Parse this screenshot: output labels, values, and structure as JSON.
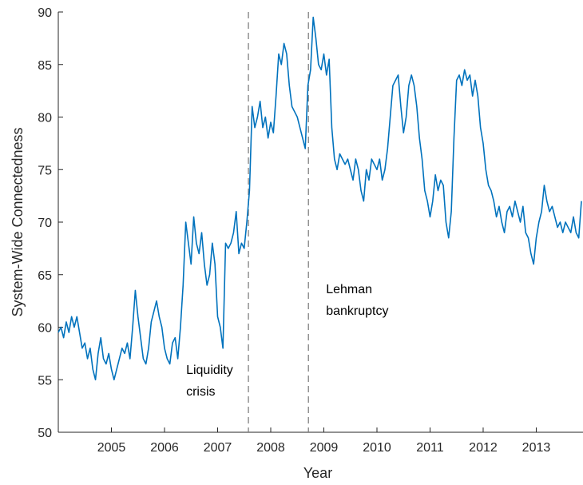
{
  "chart_data": {
    "type": "line",
    "x_label": "Year",
    "y_label": "System-Wide Connectedness",
    "x": [
      2004,
      2004.05,
      2004.1,
      2004.15,
      2004.2,
      2004.25,
      2004.3,
      2004.35,
      2004.4,
      2004.45,
      2004.5,
      2004.55,
      2004.6,
      2004.65,
      2004.7,
      2004.75,
      2004.8,
      2004.85,
      2004.9,
      2004.95,
      2005,
      2005.05,
      2005.1,
      2005.15,
      2005.2,
      2005.25,
      2005.3,
      2005.35,
      2005.4,
      2005.45,
      2005.5,
      2005.55,
      2005.6,
      2005.65,
      2005.7,
      2005.75,
      2005.8,
      2005.85,
      2005.9,
      2005.95,
      2006,
      2006.05,
      2006.1,
      2006.15,
      2006.2,
      2006.25,
      2006.3,
      2006.35,
      2006.4,
      2006.45,
      2006.5,
      2006.55,
      2006.6,
      2006.65,
      2006.7,
      2006.75,
      2006.8,
      2006.85,
      2006.9,
      2006.95,
      2007,
      2007.05,
      2007.1,
      2007.15,
      2007.2,
      2007.25,
      2007.3,
      2007.35,
      2007.4,
      2007.45,
      2007.5,
      2007.55,
      2007.6,
      2007.65,
      2007.7,
      2007.75,
      2007.8,
      2007.85,
      2007.9,
      2007.95,
      2008,
      2008.05,
      2008.1,
      2008.15,
      2008.2,
      2008.25,
      2008.3,
      2008.35,
      2008.4,
      2008.45,
      2008.5,
      2008.55,
      2008.6,
      2008.65,
      2008.7,
      2008.75,
      2008.8,
      2008.85,
      2008.9,
      2008.95,
      2009,
      2009.05,
      2009.1,
      2009.15,
      2009.2,
      2009.25,
      2009.3,
      2009.35,
      2009.4,
      2009.45,
      2009.5,
      2009.55,
      2009.6,
      2009.65,
      2009.7,
      2009.75,
      2009.8,
      2009.85,
      2009.9,
      2009.95,
      2010,
      2010.05,
      2010.1,
      2010.15,
      2010.2,
      2010.25,
      2010.3,
      2010.35,
      2010.4,
      2010.45,
      2010.5,
      2010.55,
      2010.6,
      2010.65,
      2010.7,
      2010.75,
      2010.8,
      2010.85,
      2010.9,
      2010.95,
      2011,
      2011.05,
      2011.1,
      2011.15,
      2011.2,
      2011.25,
      2011.3,
      2011.35,
      2011.4,
      2011.45,
      2011.5,
      2011.55,
      2011.6,
      2011.65,
      2011.7,
      2011.75,
      2011.8,
      2011.85,
      2011.9,
      2011.95,
      2012,
      2012.05,
      2012.1,
      2012.15,
      2012.2,
      2012.25,
      2012.3,
      2012.35,
      2012.4,
      2012.45,
      2012.5,
      2012.55,
      2012.6,
      2012.65,
      2012.7,
      2012.75,
      2012.8,
      2012.85,
      2012.9,
      2012.95,
      2013,
      2013.05,
      2013.1,
      2013.15,
      2013.2,
      2013.25,
      2013.3,
      2013.35,
      2013.4,
      2013.45,
      2013.5,
      2013.55,
      2013.6,
      2013.65,
      2013.7,
      2013.75,
      2013.8,
      2013.85
    ],
    "series": [
      {
        "color": "#0072bd",
        "values": [
          59.5,
          60,
          59,
          60.5,
          59.5,
          61,
          60,
          61,
          59.5,
          58,
          58.5,
          57,
          58,
          56,
          55,
          57.5,
          59,
          57,
          56.5,
          57.5,
          56,
          55,
          56,
          57,
          58,
          57.5,
          58.5,
          57,
          60,
          63.5,
          61,
          59,
          57,
          56.5,
          58,
          60.5,
          61.5,
          62.5,
          61,
          60,
          58,
          57,
          56.5,
          58.5,
          59,
          57,
          60,
          64,
          70,
          68,
          66,
          70.5,
          68,
          67,
          69,
          66,
          64,
          65,
          68,
          66,
          61,
          60,
          58,
          68,
          67.5,
          68,
          69,
          71,
          67,
          68,
          67.5,
          70,
          73,
          81,
          79,
          80,
          81.5,
          79,
          80,
          78,
          79.5,
          78.5,
          82,
          86,
          85,
          87,
          86,
          83,
          81,
          80.5,
          80,
          79,
          78,
          77,
          83,
          84.5,
          89.5,
          87.5,
          85,
          84.5,
          86,
          84,
          85.5,
          79,
          76,
          75,
          76.5,
          76,
          75.5,
          76,
          75,
          74,
          76,
          75,
          73,
          72,
          75,
          74,
          76,
          75.5,
          75,
          76,
          74,
          75,
          77,
          80,
          83,
          83.5,
          84,
          81,
          78.5,
          80,
          83,
          84,
          83,
          81,
          78,
          76,
          73,
          72,
          70.5,
          72,
          74.5,
          73,
          74,
          73.5,
          70,
          68.5,
          71,
          78,
          83.5,
          84,
          83,
          84.5,
          83.5,
          84,
          82,
          83.5,
          82,
          79,
          77.5,
          75,
          73.5,
          73,
          72,
          70.5,
          71.5,
          70,
          69,
          71,
          71.5,
          70.5,
          72,
          71,
          70,
          71.5,
          69,
          68.5,
          67,
          66,
          68.5,
          70,
          71,
          73.5,
          72,
          71,
          71.5,
          70.5,
          69.5,
          70,
          69,
          70,
          69.5,
          69,
          70.5,
          69,
          68.5,
          72
        ]
      }
    ],
    "xlim": [
      2004,
      2013.88
    ],
    "xticks": [
      2005,
      2006,
      2007,
      2008,
      2009,
      2010,
      2011,
      2012,
      2013
    ],
    "ylim": [
      50,
      90
    ],
    "yticks": [
      50,
      55,
      60,
      65,
      70,
      75,
      80,
      85,
      90
    ],
    "events": [
      {
        "x": 2007.58,
        "label": [
          "Liquidity",
          "crisis"
        ]
      },
      {
        "x": 2008.71,
        "label": [
          "Lehman",
          "bankruptcy"
        ]
      }
    ]
  }
}
